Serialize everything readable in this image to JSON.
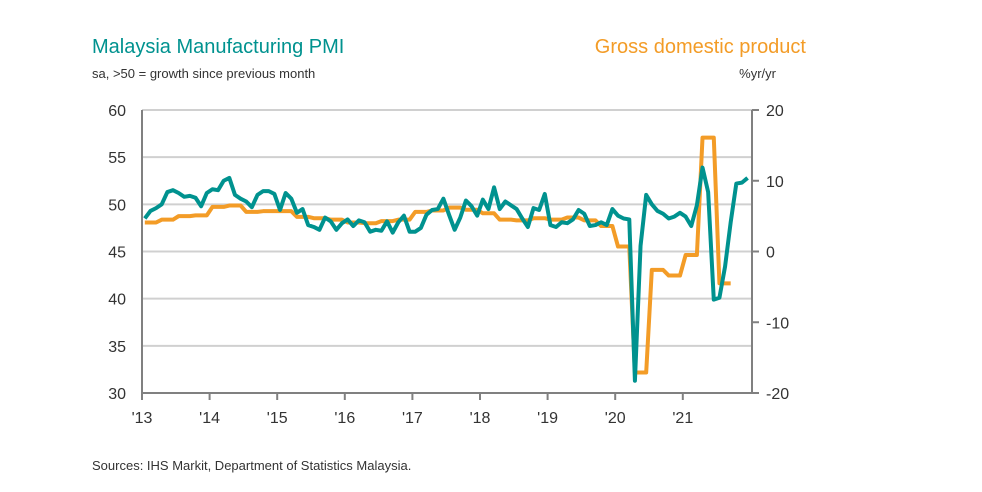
{
  "chart_data": {
    "type": "line",
    "title_left": "Malaysia Manufacturing PMI",
    "subtitle_left": "sa, >50 = growth since previous month",
    "title_right": "Gross domestic product",
    "subtitle_right": "%yr/yr",
    "source": "Sources: IHS Markit, Department of Statistics Malaysia.",
    "x_ticks": [
      "'13",
      "'14",
      "'15",
      "'16",
      "'17",
      "'18",
      "'19",
      "'20",
      "'21"
    ],
    "y_left": {
      "ticks": [
        "60",
        "55",
        "50",
        "45",
        "40",
        "35",
        "30"
      ],
      "range": [
        30,
        60
      ]
    },
    "y_right": {
      "ticks": [
        "20",
        "10",
        "0",
        "-10",
        "-20"
      ],
      "range": [
        -20,
        20
      ]
    },
    "grid": true,
    "colors": {
      "pmi": "#00928f",
      "gdp": "#f39c27"
    },
    "series": [
      {
        "name": "Malaysia Manufacturing PMI",
        "axis": "left",
        "frequency": "monthly",
        "start": "2013-01",
        "values": [
          48.5,
          49.3,
          49.6,
          50.0,
          51.3,
          51.5,
          51.2,
          50.8,
          50.9,
          50.7,
          49.8,
          51.2,
          51.6,
          51.5,
          52.5,
          52.8,
          51.0,
          50.6,
          50.3,
          49.7,
          51.0,
          51.4,
          51.4,
          51.1,
          49.4,
          51.2,
          50.6,
          49.1,
          49.5,
          47.8,
          47.6,
          47.3,
          48.6,
          48.2,
          47.3,
          48.0,
          48.4,
          47.7,
          48.3,
          48.1,
          47.1,
          47.3,
          47.2,
          48.2,
          47.0,
          48.1,
          48.8,
          47.1,
          47.1,
          47.5,
          48.9,
          49.4,
          49.5,
          50.6,
          48.9,
          47.3,
          48.6,
          50.4,
          49.8,
          48.8,
          50.5,
          49.5,
          51.8,
          49.5,
          50.3,
          49.9,
          49.5,
          48.5,
          47.6,
          49.6,
          49.4,
          51.1,
          47.8,
          47.6,
          48.1,
          48.0,
          48.4,
          49.4,
          49.0,
          47.7,
          47.8,
          48.1,
          47.8,
          49.5,
          48.8,
          48.5,
          48.4,
          31.3,
          45.6,
          51.0,
          50.0,
          49.3,
          49.0,
          48.5,
          48.7,
          49.1,
          48.7,
          47.7,
          49.9,
          53.9,
          51.3,
          39.9,
          40.1,
          43.4,
          48.1,
          52.2,
          52.3,
          52.8
        ]
      },
      {
        "name": "Gross domestic product",
        "axis": "right",
        "frequency": "quarterly",
        "start": "2013-Q1",
        "values": [
          4.1,
          4.5,
          5.0,
          5.1,
          6.3,
          6.5,
          5.6,
          5.7,
          5.7,
          4.9,
          4.7,
          4.5,
          4.1,
          4.0,
          4.3,
          4.5,
          5.6,
          5.8,
          6.2,
          5.9,
          5.4,
          4.5,
          4.4,
          4.7,
          4.5,
          4.8,
          4.4,
          3.6,
          0.7,
          -17.1,
          -2.6,
          -3.4,
          -0.5,
          16.1,
          -4.5
        ]
      }
    ]
  }
}
